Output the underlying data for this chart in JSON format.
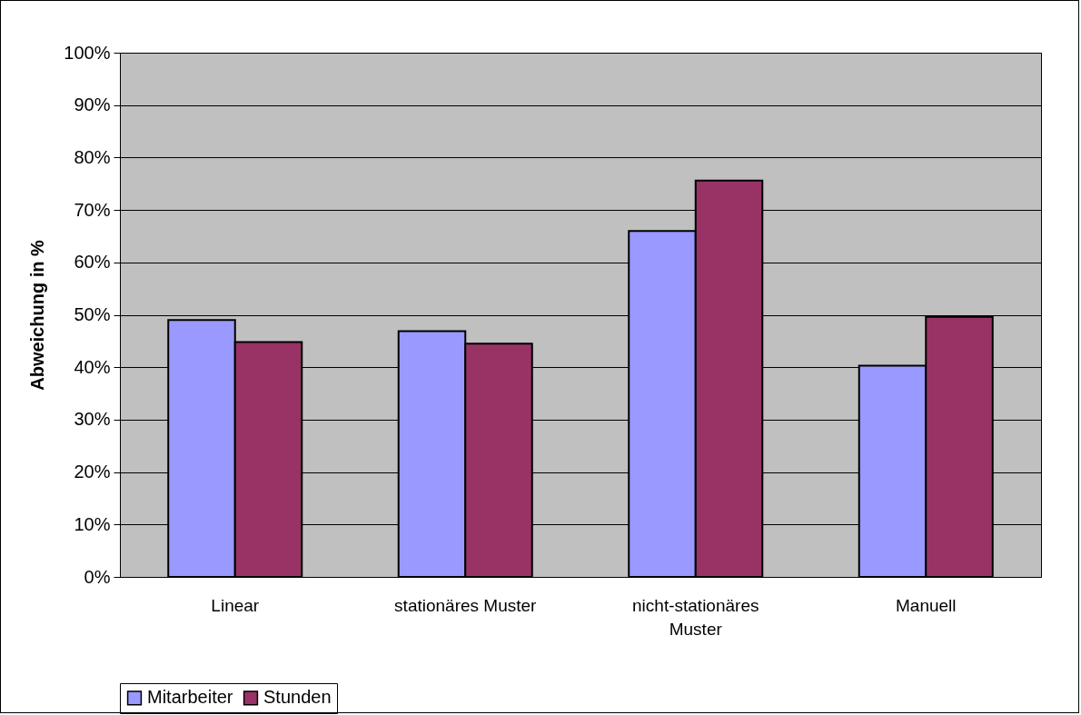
{
  "chart_data": {
    "type": "bar",
    "ylabel": "Abweichung in %",
    "categories": [
      "Linear",
      "stationäres Muster",
      "nicht-stationäres Muster",
      "Manuell"
    ],
    "series": [
      {
        "name": "Mitarbeiter",
        "color": "#9999ff",
        "values": [
          49.0,
          46.9,
          66.0,
          40.3
        ]
      },
      {
        "name": "Stunden",
        "color": "#993366",
        "values": [
          44.8,
          44.5,
          75.6,
          49.6
        ]
      }
    ],
    "ylim": [
      0,
      100
    ],
    "yticks": [
      {
        "value": 0,
        "label": "0%"
      },
      {
        "value": 10,
        "label": "10%"
      },
      {
        "value": 20,
        "label": "20%"
      },
      {
        "value": 30,
        "label": "30%"
      },
      {
        "value": 40,
        "label": "40%"
      },
      {
        "value": 50,
        "label": "50%"
      },
      {
        "value": 60,
        "label": "60%"
      },
      {
        "value": 70,
        "label": "70%"
      },
      {
        "value": 80,
        "label": "80%"
      },
      {
        "value": 90,
        "label": "90%"
      },
      {
        "value": 100,
        "label": "100%"
      }
    ],
    "grid": "y",
    "legend": "bottom"
  }
}
